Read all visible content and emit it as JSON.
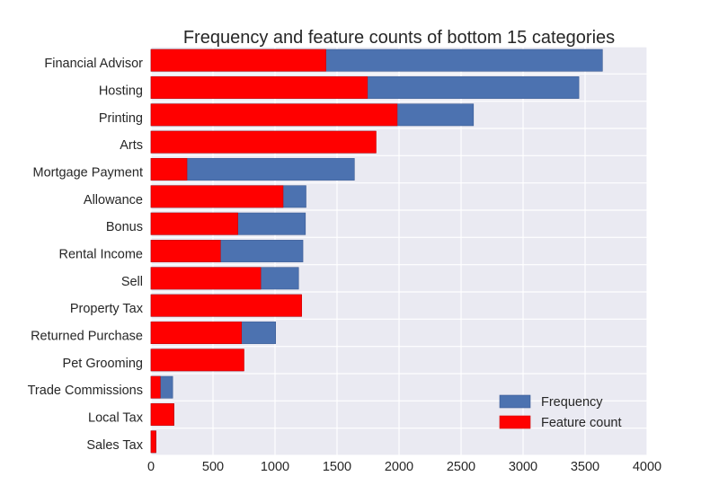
{
  "chart_data": {
    "type": "bar",
    "orientation": "horizontal",
    "title": "Frequency and feature counts of bottom 15 categories",
    "xlabel": "",
    "ylabel": "",
    "xlim": [
      0,
      4000
    ],
    "xticks": [
      0,
      500,
      1000,
      1500,
      2000,
      2500,
      3000,
      3500,
      4000
    ],
    "grid": true,
    "legend_position": "lower-right",
    "categories": [
      "Financial Advisor",
      "Hosting",
      "Printing",
      "Arts",
      "Mortgage Payment",
      "Allowance",
      "Bonus",
      "Rental Income",
      "Sell",
      "Property Tax",
      "Returned Purchase",
      "Pet Grooming",
      "Trade Commissions",
      "Local Tax",
      "Sales Tax"
    ],
    "series": [
      {
        "name": "Frequency",
        "color": "#4C72B0",
        "values": [
          3640,
          3450,
          2600,
          1810,
          1640,
          1250,
          1245,
          1225,
          1190,
          1210,
          1005,
          745,
          175,
          185,
          40
        ]
      },
      {
        "name": "Feature count",
        "color": "#FF0000",
        "values": [
          1410,
          1745,
          1985,
          1815,
          290,
          1065,
          700,
          560,
          885,
          1215,
          730,
          750,
          75,
          185,
          40
        ]
      }
    ]
  }
}
